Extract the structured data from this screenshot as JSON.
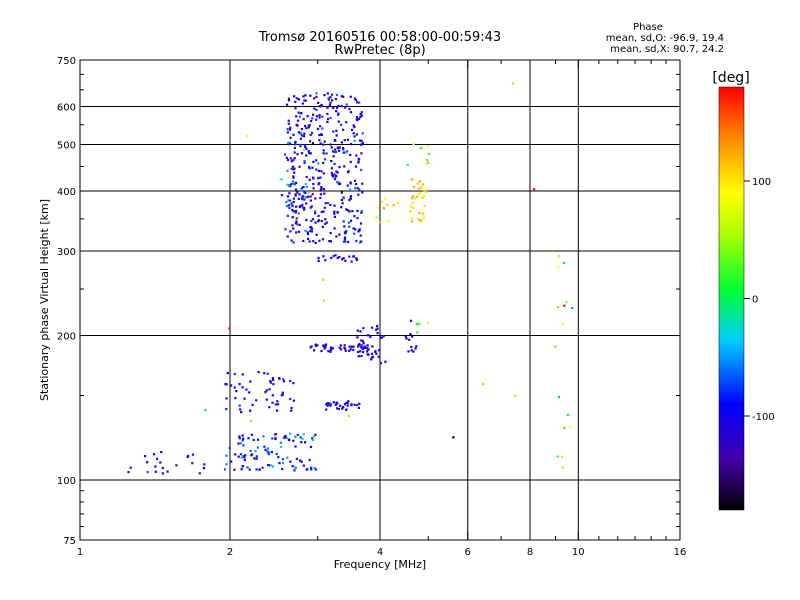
{
  "chart_data": {
    "type": "scatter",
    "title": "Tromsø 20160516 00:58:00-00:59:43",
    "subtitle": "RwPretec (8p)",
    "xlabel": "Frequency [MHz]",
    "ylabel": "Stationary phase Virtual Height [km]",
    "x_scale": "log",
    "y_scale": "log",
    "xlim": [
      1,
      16
    ],
    "ylim": [
      75,
      750
    ],
    "x_ticks": [
      {
        "value": 1,
        "label": "1"
      },
      {
        "value": 2,
        "label": "2"
      },
      {
        "value": 4,
        "label": "4"
      },
      {
        "value": 6,
        "label": "6"
      },
      {
        "value": 8,
        "label": "8"
      },
      {
        "value": 10,
        "label": "10"
      },
      {
        "value": 16,
        "label": "16"
      }
    ],
    "y_ticks": [
      {
        "value": 75,
        "label": "75"
      },
      {
        "value": 100,
        "label": "100"
      },
      {
        "value": 200,
        "label": "200"
      },
      {
        "value": 300,
        "label": "300"
      },
      {
        "value": 400,
        "label": "400"
      },
      {
        "value": 500,
        "label": "500"
      },
      {
        "value": 600,
        "label": "600"
      },
      {
        "value": 750,
        "label": "750"
      }
    ],
    "x_gridlines": [
      2,
      4,
      6,
      8,
      10
    ],
    "y_gridlines": [
      100,
      200,
      300,
      400,
      500,
      600
    ],
    "phase_info": {
      "heading": "Phase",
      "line_o": "mean, sd,O:  -96.9, 19.4",
      "line_x": "mean, sd,X:  90.7, 24.2"
    },
    "colorbar": {
      "label": "[deg]",
      "range": [
        -180,
        180
      ],
      "ticks": [
        {
          "value": 100,
          "label": "100"
        },
        {
          "value": 0,
          "label": "0"
        },
        {
          "value": -100,
          "label": "-100"
        }
      ]
    },
    "clusters": [
      {
        "fmin": 2.6,
        "fmax": 3.7,
        "hmin": 310,
        "hmax": 640,
        "n": 420,
        "phase": -100,
        "phase_sd": 20
      },
      {
        "fmin": 3.0,
        "fmax": 3.6,
        "hmin": 285,
        "hmax": 295,
        "n": 18,
        "phase": -100,
        "phase_sd": 12
      },
      {
        "fmin": 2.5,
        "fmax": 2.85,
        "hmin": 330,
        "hmax": 480,
        "n": 25,
        "phase": -80,
        "phase_sd": 30
      },
      {
        "fmin": 4.6,
        "fmax": 4.95,
        "hmin": 345,
        "hmax": 420,
        "n": 35,
        "phase": 110,
        "phase_sd": 12
      },
      {
        "fmin": 3.9,
        "fmax": 4.4,
        "hmin": 340,
        "hmax": 390,
        "n": 10,
        "phase": 115,
        "phase_sd": 25
      },
      {
        "fmin": 4.3,
        "fmax": 5.1,
        "hmin": 420,
        "hmax": 560,
        "n": 10,
        "phase": 60,
        "phase_sd": 60
      },
      {
        "fmin": 2.9,
        "fmax": 3.8,
        "hmin": 185,
        "hmax": 192,
        "n": 45,
        "phase": -110,
        "phase_sd": 12
      },
      {
        "fmin": 3.6,
        "fmax": 4.1,
        "hmin": 175,
        "hmax": 210,
        "n": 40,
        "phase": -110,
        "phase_sd": 12
      },
      {
        "fmin": 4.4,
        "fmax": 4.8,
        "hmin": 185,
        "hmax": 200,
        "n": 10,
        "phase": -110,
        "phase_sd": 10
      },
      {
        "fmin": 4.6,
        "fmax": 5.05,
        "hmin": 200,
        "hmax": 215,
        "n": 6,
        "phase": 20,
        "phase_sd": 90
      },
      {
        "fmin": 3.1,
        "fmax": 3.65,
        "hmin": 140,
        "hmax": 146,
        "n": 30,
        "phase": -95,
        "phase_sd": 15
      },
      {
        "fmin": 1.95,
        "fmax": 2.7,
        "hmin": 138,
        "hmax": 168,
        "n": 55,
        "phase": -100,
        "phase_sd": 18
      },
      {
        "fmin": 1.95,
        "fmax": 3.0,
        "hmin": 104,
        "hmax": 125,
        "n": 110,
        "phase": -85,
        "phase_sd": 28
      },
      {
        "fmin": 1.25,
        "fmax": 1.8,
        "hmin": 103,
        "hmax": 115,
        "n": 22,
        "phase": -100,
        "phase_sd": 15
      },
      {
        "fmin": 8.9,
        "fmax": 9.8,
        "hmin": 105,
        "hmax": 330,
        "n": 16,
        "phase": 60,
        "phase_sd": 100
      },
      {
        "fmin": 1.4,
        "fmax": 12.2,
        "hmin": 120,
        "hmax": 680,
        "n": 16,
        "phase": 60,
        "phase_sd": 90
      }
    ]
  }
}
